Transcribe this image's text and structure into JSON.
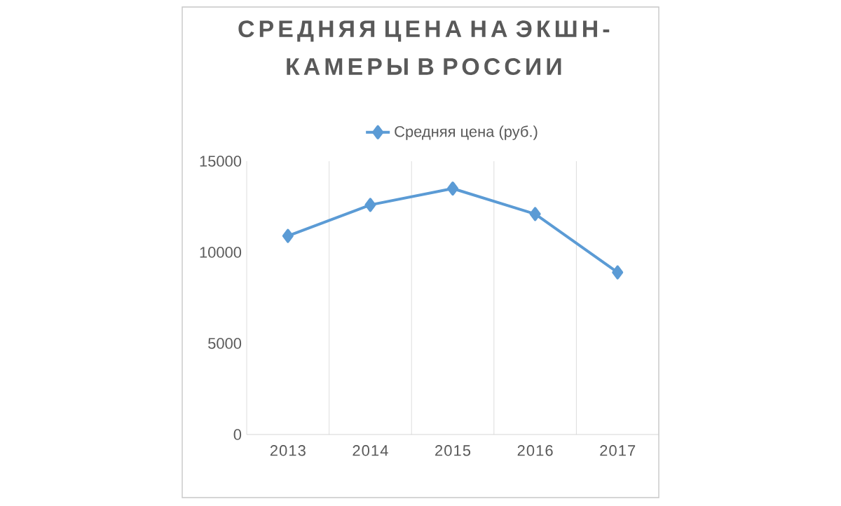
{
  "chart_data": {
    "type": "line",
    "title": "СРЕДНЯЯ ЦЕНА НА ЭКШН-КАМЕРЫ В РОССИИ",
    "categories": [
      "2013",
      "2014",
      "2015",
      "2016",
      "2017"
    ],
    "series": [
      {
        "name": "Средняя цена (руб.)",
        "color": "#5b9bd5",
        "values": [
          10900,
          12600,
          13500,
          12100,
          8900
        ]
      }
    ],
    "ylim": [
      0,
      15000
    ],
    "yticks": [
      0,
      5000,
      10000,
      15000
    ],
    "grid": "x",
    "legend": "top",
    "marker": "diamond",
    "line_style": "solid"
  }
}
